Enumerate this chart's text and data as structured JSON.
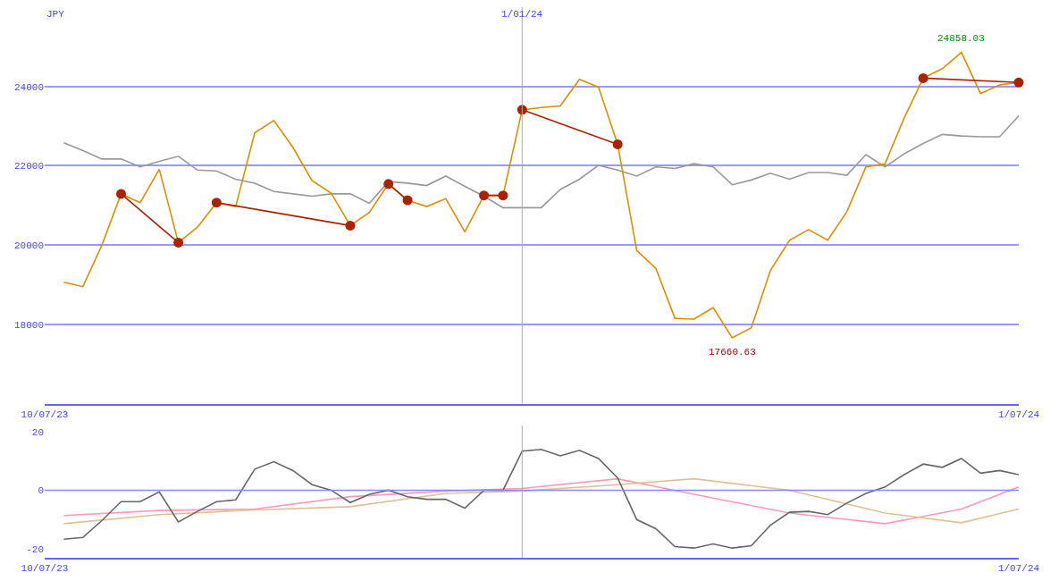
{
  "chart_data": [
    {
      "type": "line",
      "ylabel": "JPY",
      "x": [
        "2023-07-17",
        "2023-07-24",
        "2023-07-31",
        "2023-08-07",
        "2023-08-14",
        "2023-08-21",
        "2023-08-28",
        "2023-09-04",
        "2023-09-11",
        "2023-09-18",
        "2023-09-25",
        "2023-10-02",
        "2023-10-09",
        "2023-10-16",
        "2023-10-23",
        "2023-10-30",
        "2023-11-06",
        "2023-11-13",
        "2023-11-20",
        "2023-11-27",
        "2023-12-04",
        "2023-12-11",
        "2023-12-18",
        "2023-12-25",
        "2024-01-01",
        "2024-01-08",
        "2024-01-15",
        "2024-01-22",
        "2024-01-29",
        "2024-02-05",
        "2024-02-12",
        "2024-02-19",
        "2024-02-26",
        "2024-03-04",
        "2024-03-11",
        "2024-03-18",
        "2024-03-25",
        "2024-04-01",
        "2024-04-08",
        "2024-04-15",
        "2024-04-22",
        "2024-04-29",
        "2024-05-06",
        "2024-05-13",
        "2024-05-20",
        "2024-05-27",
        "2024-06-03",
        "2024-06-10",
        "2024-06-17",
        "2024-06-24",
        "2024-07-01"
      ],
      "series": [
        {
          "color": "#999999",
          "values": [
            22580,
            22380,
            22170,
            22170,
            21970,
            22110,
            22240,
            21890,
            21870,
            21660,
            21560,
            21350,
            21290,
            21230,
            21290,
            21290,
            21050,
            21600,
            21560,
            21500,
            21740,
            21480,
            21230,
            20940,
            20940,
            20940,
            21400,
            21660,
            22010,
            21890,
            21740,
            21970,
            21930,
            22050,
            21970,
            21520,
            21640,
            21810,
            21660,
            21830,
            21830,
            21760,
            22280,
            21970,
            22300,
            22560,
            22790,
            22750,
            22730,
            22730,
            23260
          ]
        },
        {
          "color": "#dd8f00",
          "values": [
            19060,
            18950,
            20000,
            21290,
            21070,
            21910,
            20060,
            20450,
            21070,
            20970,
            22830,
            23140,
            22460,
            21620,
            21310,
            20490,
            20820,
            21540,
            21130,
            20970,
            21170,
            20330,
            21250,
            21250,
            23410,
            23470,
            23510,
            24180,
            23980,
            22540,
            19860,
            19410,
            18150,
            18130,
            18420,
            17660,
            17910,
            19360,
            20120,
            20390,
            20120,
            20840,
            21970,
            22050,
            23200,
            24210,
            24450,
            24860,
            23820,
            24040,
            24100
          ]
        },
        {
          "color": "#aa2200",
          "marker": "circle",
          "x": [
            "2023-08-07",
            "2023-08-28"
          ],
          "values": [
            21290,
            20060
          ]
        },
        {
          "color": "#aa2200",
          "marker": "circle",
          "x": [
            "2023-09-11",
            "2023-10-30"
          ],
          "values": [
            21070,
            20490
          ]
        },
        {
          "color": "#aa2200",
          "marker": "circle",
          "x": [
            "2023-11-13",
            "2023-11-20"
          ],
          "values": [
            21540,
            21130
          ]
        },
        {
          "color": "#aa2200",
          "marker": "circle",
          "x": [
            "2023-12-18",
            "2023-12-25"
          ],
          "values": [
            21250,
            21250
          ]
        },
        {
          "color": "#aa2200",
          "marker": "circle",
          "x": [
            "2024-01-01",
            "2024-02-05"
          ],
          "values": [
            23410,
            22540
          ]
        },
        {
          "color": "#aa2200",
          "marker": "circle",
          "x": [
            "2024-05-27",
            "2024-07-01"
          ],
          "values": [
            24210,
            24100
          ]
        }
      ],
      "xlim": [
        "2023-07-10",
        "2024-07-01"
      ],
      "xticks": [
        {
          "value": "2023-07-10",
          "label": "10/07/23"
        },
        {
          "value": "2024-07-01",
          "label": "1/07/24"
        }
      ],
      "ylim": [
        16000,
        26000
      ],
      "yticks": [
        18000,
        20000,
        22000,
        24000
      ],
      "grid": "y",
      "ref_lines": [
        {
          "axis": "x",
          "value": "2024-01-01",
          "label": "1/01/24",
          "color": "#aaaaaa"
        }
      ],
      "annotations": [
        {
          "text": "24858.03",
          "x": "2024-06-10",
          "y": 24858.03
        },
        {
          "text": "17660.63",
          "x": "2024-03-18",
          "y": 17660.63
        }
      ]
    },
    {
      "type": "line",
      "x": [
        "2023-07-17",
        "2023-07-24",
        "2023-07-31",
        "2023-08-07",
        "2023-08-14",
        "2023-08-21",
        "2023-08-28",
        "2023-09-04",
        "2023-09-11",
        "2023-09-18",
        "2023-09-25",
        "2023-10-02",
        "2023-10-09",
        "2023-10-16",
        "2023-10-23",
        "2023-10-30",
        "2023-11-06",
        "2023-11-13",
        "2023-11-20",
        "2023-11-27",
        "2023-12-04",
        "2023-12-11",
        "2023-12-18",
        "2023-12-25",
        "2024-01-01",
        "2024-01-08",
        "2024-01-15",
        "2024-01-22",
        "2024-01-29",
        "2024-02-05",
        "2024-02-12",
        "2024-02-19",
        "2024-02-26",
        "2024-03-04",
        "2024-03-11",
        "2024-03-18",
        "2024-03-25",
        "2024-04-01",
        "2024-04-08",
        "2024-04-15",
        "2024-04-22",
        "2024-04-29",
        "2024-05-06",
        "2024-05-13",
        "2024-05-20",
        "2024-05-27",
        "2024-06-03",
        "2024-06-10",
        "2024-06-17",
        "2024-06-24",
        "2024-07-01"
      ],
      "series": [
        {
          "color": "#ff99bb",
          "x": [
            "2023-07-17",
            "2023-08-21",
            "2023-09-25",
            "2023-10-30",
            "2023-12-04",
            "2024-01-01",
            "2024-02-05",
            "2024-03-04",
            "2024-04-08",
            "2024-05-13",
            "2024-06-10",
            "2024-07-01"
          ],
          "values": [
            -8.6,
            -6.9,
            -6.4,
            -2.2,
            -0.3,
            0.6,
            3.9,
            -1.4,
            -7.8,
            -11.4,
            -6.4,
            1.1
          ]
        },
        {
          "color": "#e0c090",
          "x": [
            "2023-07-17",
            "2023-08-21",
            "2023-09-25",
            "2023-10-30",
            "2023-12-04",
            "2024-01-01",
            "2024-02-05",
            "2024-03-04",
            "2024-04-08",
            "2024-05-13",
            "2024-06-10",
            "2024-07-01"
          ],
          "values": [
            -11.4,
            -8.3,
            -6.7,
            -5.6,
            -1.1,
            -0.3,
            1.9,
            3.9,
            0,
            -7.8,
            -11.1,
            -6.4
          ]
        },
        {
          "color": "#666666",
          "values": [
            -16.7,
            -16.1,
            -10.3,
            -3.9,
            -3.9,
            -0.6,
            -10.8,
            -7.2,
            -3.9,
            -3.3,
            7.2,
            9.7,
            6.7,
            1.9,
            0,
            -4.2,
            -1.4,
            0,
            -2.2,
            -3.1,
            -3.1,
            -6.1,
            0,
            0,
            13.3,
            13.9,
            11.7,
            13.6,
            10.8,
            4.2,
            -10,
            -13.1,
            -19.2,
            -19.7,
            -18.3,
            -19.7,
            -18.9,
            -11.9,
            -7.5,
            -7.2,
            -8.3,
            -4.4,
            -1.1,
            1.1,
            5.3,
            8.9,
            7.8,
            10.8,
            5.8,
            6.7,
            5.3
          ]
        }
      ],
      "xlim": [
        "2023-07-10",
        "2024-07-01"
      ],
      "xticks": [
        {
          "value": "2023-07-10",
          "label": "10/07/23"
        },
        {
          "value": "2024-07-01",
          "label": "1/07/24"
        }
      ],
      "ylim": [
        -23,
        22
      ],
      "yticks": [
        -20,
        0,
        20
      ],
      "ref_lines": [
        {
          "axis": "y",
          "value": 0,
          "color": "#8888ff"
        },
        {
          "axis": "x",
          "value": "2024-01-01",
          "color": "#aaaaaa"
        }
      ]
    }
  ]
}
